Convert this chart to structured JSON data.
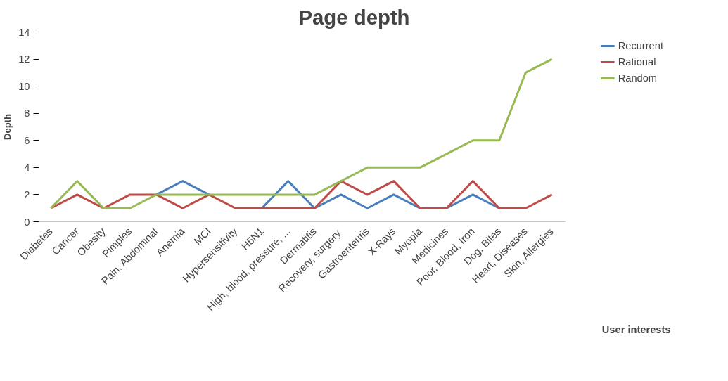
{
  "chart_data": {
    "type": "line",
    "title": "Page depth",
    "xlabel": "User interests",
    "ylabel": "Depth",
    "categories": [
      "Diabetes",
      "Cancer",
      "Obesity",
      "Pimples",
      "Pain, Abdominal",
      "Anemia",
      "MCI",
      "Hypersensitivity",
      "H5N1",
      "High, blood, pressure, ...",
      "Dermatitis",
      "Recovery,  surgery",
      "Gastroenteritis",
      "X-Rays",
      "Myopia",
      "Medicines",
      "Poor, Blood, Iron",
      "Dog, Bites",
      "Heart, Diseases",
      "Skin, Allergies"
    ],
    "series": [
      {
        "name": "Recurrent",
        "color": "#4a7ebb",
        "values": [
          null,
          null,
          null,
          null,
          2,
          3,
          2,
          null,
          1,
          3,
          1,
          2,
          1,
          2,
          1,
          1,
          2,
          1,
          null,
          null
        ]
      },
      {
        "name": "Rational",
        "color": "#be4b48",
        "values": [
          1,
          2,
          1,
          2,
          2,
          1,
          2,
          1,
          1,
          1,
          1,
          3,
          2,
          3,
          1,
          1,
          3,
          1,
          1,
          2
        ]
      },
      {
        "name": "Random",
        "color": "#98b954",
        "values": [
          1,
          3,
          1,
          1,
          2,
          2,
          2,
          2,
          2,
          2,
          2,
          3,
          4,
          4,
          4,
          5,
          6,
          6,
          11,
          12
        ]
      }
    ],
    "ylim": [
      0,
      14
    ],
    "yticks": [
      0,
      2,
      4,
      6,
      8,
      10,
      12,
      14
    ],
    "grid": false,
    "legend": "right",
    "marker": "none",
    "line_style": "solid"
  }
}
